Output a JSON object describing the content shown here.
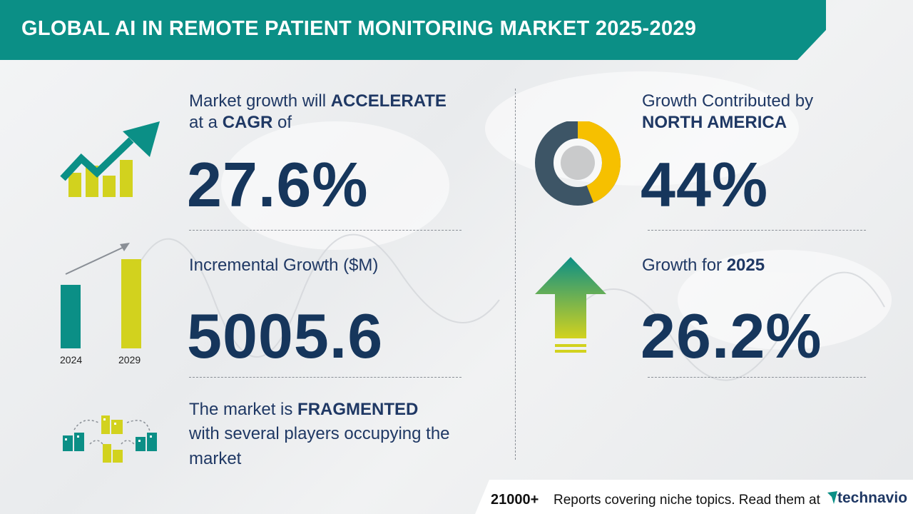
{
  "header": {
    "title": "GLOBAL AI IN REMOTE PATIENT MONITORING MARKET 2025-2029"
  },
  "cagr": {
    "line1_pre": "Market growth will ",
    "line1_bold": "ACCELERATE",
    "line2_pre": "at a ",
    "line2_bold": "CAGR",
    "line2_post": " of",
    "value": "27.6%"
  },
  "incremental": {
    "label": "Incremental Growth ($M)",
    "value": "5005.6",
    "year_start": "2024",
    "year_end": "2029"
  },
  "market": {
    "line1_pre": "The market is ",
    "line1_bold": "FRAGMENTED",
    "line2": "with several players occupying the",
    "line3": "market"
  },
  "region": {
    "line1": "Growth Contributed by",
    "line2": "NORTH AMERICA",
    "value": "44%",
    "share_fraction": 0.44
  },
  "yoy": {
    "label_pre": "Growth for ",
    "label_bold": "2025",
    "value": "26.2%"
  },
  "footer": {
    "count": "21000+",
    "text": "Reports covering niche topics. Read them at",
    "brand": "technavio"
  },
  "colors": {
    "teal": "#0b8f86",
    "lime": "#d2d21e",
    "navy": "#16365c",
    "donut_yellow": "#f6c000",
    "donut_dark": "#3d5566"
  },
  "icons": [
    "growth-chart-icon",
    "bar-growth-icon",
    "buildings-network-icon",
    "donut-chart-icon",
    "up-arrow-icon",
    "technavio-logo-icon"
  ]
}
